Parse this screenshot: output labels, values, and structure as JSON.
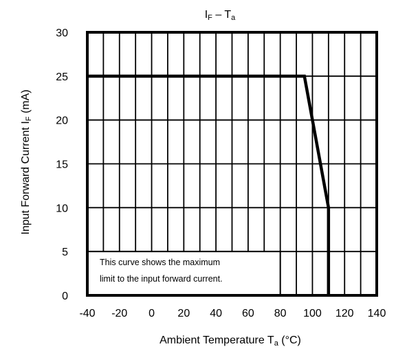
{
  "chart_data": {
    "type": "line",
    "title": {
      "main": "I",
      "sub": "F",
      "rest": " – T",
      "sub2": "a"
    },
    "xlabel": {
      "main": "Ambient Temperature   T",
      "sub": "a",
      "unit": "   (°C)"
    },
    "ylabel": {
      "main": "Input Forward Current   I",
      "sub": "F",
      "unit": "    (mA)"
    },
    "xlim": [
      -40,
      140
    ],
    "ylim": [
      0,
      30
    ],
    "x_ticks": [
      "-40",
      "-20",
      "0",
      "20",
      "40",
      "60",
      "80",
      "100",
      "120",
      "140"
    ],
    "y_ticks": [
      "0",
      "5",
      "10",
      "15",
      "20",
      "25",
      "30"
    ],
    "x_tick_values": [
      -40,
      -20,
      0,
      20,
      40,
      60,
      80,
      100,
      120,
      140
    ],
    "y_tick_values": [
      0,
      5,
      10,
      15,
      20,
      25,
      30
    ],
    "x_grid": [
      -40,
      -30,
      -20,
      -10,
      0,
      10,
      20,
      30,
      40,
      50,
      60,
      70,
      80,
      90,
      100,
      110,
      120,
      130,
      140
    ],
    "y_grid": [
      0,
      5,
      10,
      15,
      20,
      25,
      30
    ],
    "grid": true,
    "series": [
      {
        "x": [
          -40,
          95,
          110,
          110
        ],
        "y": [
          25,
          25,
          10,
          0
        ]
      }
    ],
    "annotation": {
      "lines": [
        "This curve shows the maximum",
        "limit to the input forward current."
      ],
      "x_range": [
        -40,
        80
      ],
      "y_range": [
        0,
        5
      ]
    }
  }
}
